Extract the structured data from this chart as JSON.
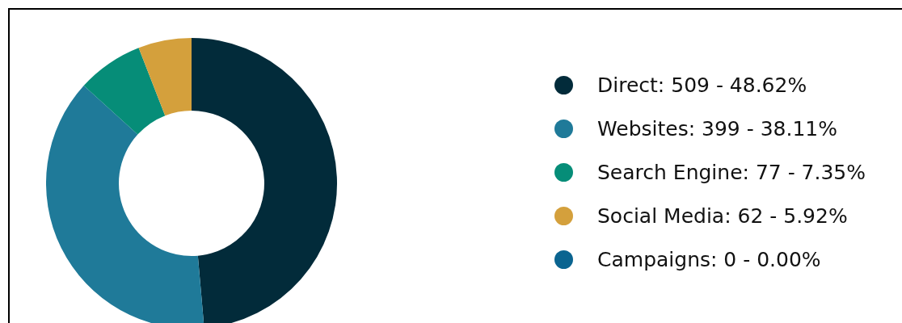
{
  "chart_data": {
    "type": "donut",
    "categories": [
      "Direct",
      "Websites",
      "Search Engine",
      "Social Media",
      "Campaigns"
    ],
    "values": [
      509,
      399,
      77,
      62,
      0
    ],
    "value_labels": [
      "509 - 48.62%",
      "399 - 38.11%",
      "77 - 7.35%",
      "62 - 5.92%",
      "0 - 0.00%"
    ],
    "colors": [
      "#022b3a",
      "#1f7a99",
      "#068d78",
      "#d4a03c",
      "#0a6490"
    ],
    "legend": "right"
  }
}
